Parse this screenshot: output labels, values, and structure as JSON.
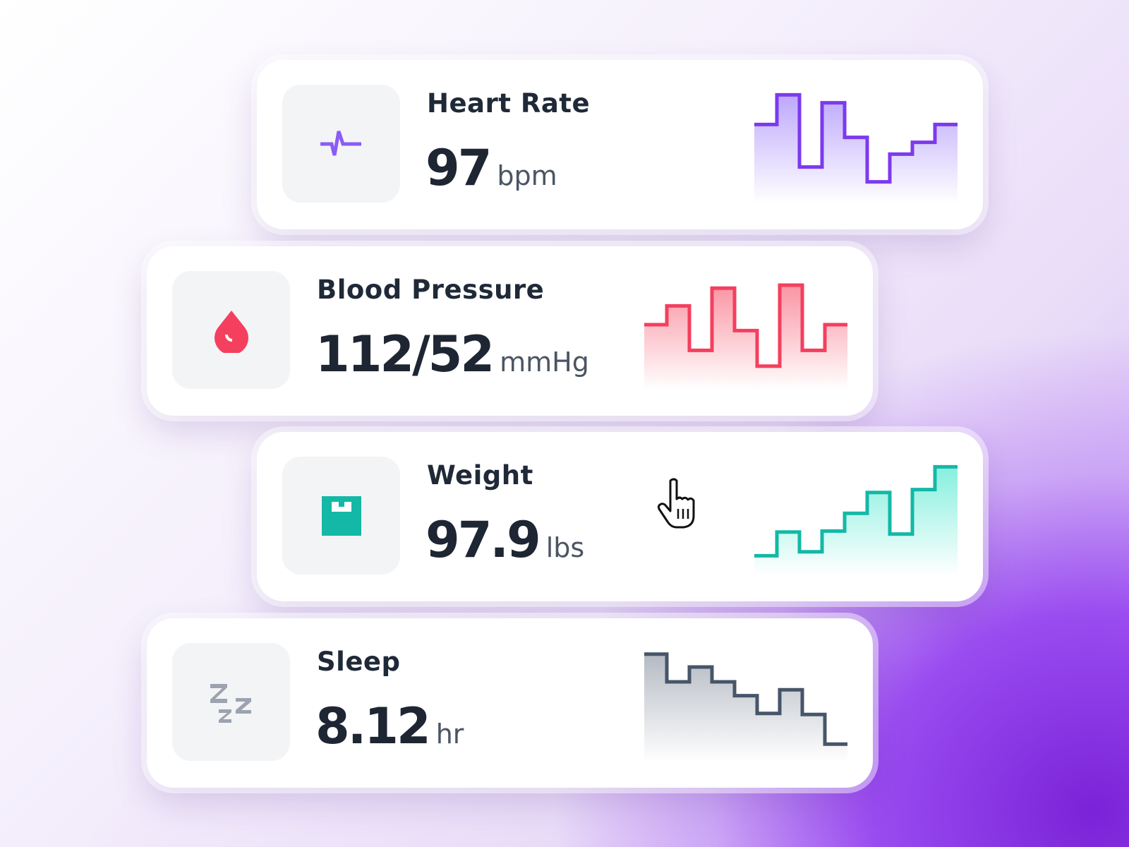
{
  "cards": [
    {
      "title": "Heart Rate",
      "value": "97",
      "unit": "bpm",
      "icon": "heartbeat-icon",
      "color": "#7c3aed",
      "fill": "#a78bfa",
      "icon_color": "#8b5cf6"
    },
    {
      "title": "Blood Pressure",
      "value": "112/52",
      "unit": "mmHg",
      "icon": "blood-drop-icon",
      "color": "#f43f5e",
      "fill": "#f87185",
      "icon_color": "#f43f5e"
    },
    {
      "title": "Weight",
      "value": "97.9",
      "unit": "lbs",
      "icon": "scale-icon",
      "color": "#14b8a6",
      "fill": "#5eead4",
      "icon_color": "#14b8a6"
    },
    {
      "title": "Sleep",
      "value": "8.12",
      "unit": "hr",
      "icon": "sleep-zzz-icon",
      "color": "#475569",
      "fill": "#9ca3af",
      "icon_color": "#9ca3af"
    }
  ],
  "chart_data": [
    {
      "type": "line",
      "step": true,
      "series_of": "Heart Rate",
      "values": [
        69,
        99,
        26,
        91,
        56,
        11,
        39,
        51,
        69
      ],
      "ylim": [
        0,
        100
      ]
    },
    {
      "type": "line",
      "step": true,
      "series_of": "Blood Pressure",
      "values": [
        55,
        74,
        29,
        92,
        49,
        13,
        95,
        29,
        55
      ],
      "ylim": [
        0,
        100
      ]
    },
    {
      "type": "line",
      "step": true,
      "series_of": "Weight",
      "values": [
        9,
        33,
        13,
        34,
        52,
        73,
        31,
        76,
        99
      ],
      "ylim": [
        0,
        100
      ]
    },
    {
      "type": "line",
      "step": true,
      "series_of": "Sleep",
      "values": [
        98,
        70,
        85,
        70,
        56,
        38,
        62,
        37,
        7
      ],
      "ylim": [
        0,
        100
      ]
    }
  ],
  "cursor": "hand-pointer-icon"
}
